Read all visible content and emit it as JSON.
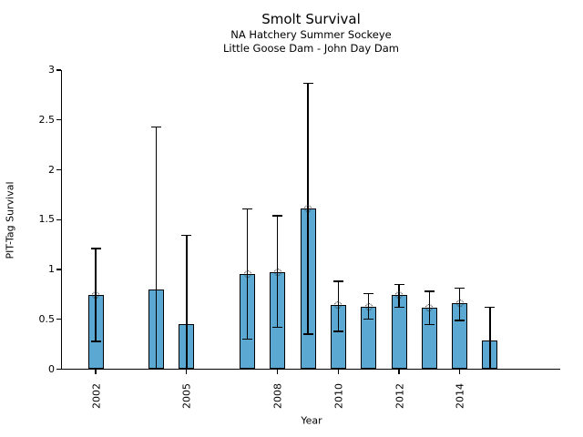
{
  "chart_data": {
    "type": "bar",
    "title": "Smolt Survival",
    "subtitle_line1": "NA Hatchery Summer Sockeye",
    "subtitle_line2": "Little Goose Dam - John Day Dam",
    "xlabel": "Year",
    "ylabel": "PIT-Tag Survival",
    "ylim": [
      0,
      3
    ],
    "yticks": [
      0,
      0.5,
      1,
      1.5,
      2,
      2.5,
      3
    ],
    "xticks": [
      2002,
      2005,
      2008,
      2010,
      2012,
      2014
    ],
    "xlim": [
      2000.9,
      2017.3
    ],
    "grid": false,
    "legend_position": "none",
    "bar_color": "#5BA9D3",
    "bar_edge_color": "#000000",
    "errorbar_color": "#000000",
    "points": [
      {
        "year": 2002,
        "value": 0.74,
        "ci_low": 0.28,
        "ci_high": 1.21,
        "marker": true
      },
      {
        "year": 2004,
        "value": 0.8,
        "ci_low": 0.0,
        "ci_high": 2.43,
        "marker": false
      },
      {
        "year": 2005,
        "value": 0.45,
        "ci_low": 0.0,
        "ci_high": 1.34,
        "marker": false
      },
      {
        "year": 2007,
        "value": 0.95,
        "ci_low": 0.3,
        "ci_high": 1.61,
        "marker": true
      },
      {
        "year": 2008,
        "value": 0.97,
        "ci_low": 0.42,
        "ci_high": 1.54,
        "marker": true
      },
      {
        "year": 2009,
        "value": 1.61,
        "ci_low": 0.35,
        "ci_high": 2.87,
        "marker": true
      },
      {
        "year": 2010,
        "value": 0.64,
        "ci_low": 0.38,
        "ci_high": 0.88,
        "marker": true
      },
      {
        "year": 2011,
        "value": 0.63,
        "ci_low": 0.5,
        "ci_high": 0.76,
        "marker": true
      },
      {
        "year": 2012,
        "value": 0.74,
        "ci_low": 0.62,
        "ci_high": 0.85,
        "marker": true
      },
      {
        "year": 2013,
        "value": 0.62,
        "ci_low": 0.45,
        "ci_high": 0.78,
        "marker": true
      },
      {
        "year": 2014,
        "value": 0.66,
        "ci_low": 0.49,
        "ci_high": 0.81,
        "marker": true
      },
      {
        "year": 2015,
        "value": 0.29,
        "ci_low": 0.0,
        "ci_high": 0.62,
        "marker": false
      }
    ]
  }
}
